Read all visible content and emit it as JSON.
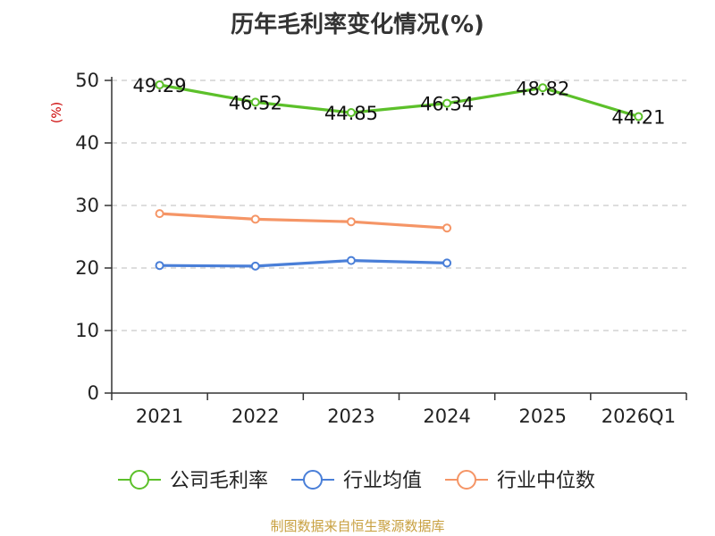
{
  "chart_data": {
    "type": "line",
    "title": "历年毛利率变化情况(%)",
    "ylabel": "(%)",
    "xlabel": "",
    "categories": [
      "2021",
      "2022",
      "2023",
      "2024",
      "2025",
      "2026Q1"
    ],
    "yticks": [
      "0",
      "10",
      "20",
      "30",
      "40",
      "50"
    ],
    "ylim": [
      0,
      50
    ],
    "grid": true,
    "legend_position": "bottom",
    "series": [
      {
        "name": "公司毛利率",
        "color": "#5cc02a",
        "values": [
          49.29,
          46.52,
          44.85,
          46.34,
          48.82,
          44.21
        ],
        "labels": [
          "49.29",
          "46.52",
          "44.85",
          "46.34",
          "48.82",
          "44.21"
        ]
      },
      {
        "name": "行业均值",
        "color": "#4a7fd8",
        "values": [
          20.4,
          20.3,
          21.2,
          20.8,
          null,
          null
        ]
      },
      {
        "name": "行业中位数",
        "color": "#f59566",
        "values": [
          28.7,
          27.8,
          27.4,
          26.4,
          null,
          null
        ]
      }
    ]
  },
  "source": "制图数据来自恒生聚源数据库"
}
